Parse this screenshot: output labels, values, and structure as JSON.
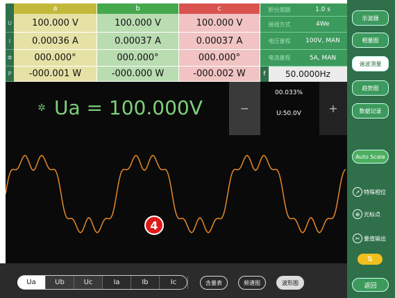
{
  "table": {
    "columns": [
      "a",
      "b",
      "c"
    ],
    "row_labels": [
      "U",
      "I",
      "Φ",
      "P"
    ],
    "rows": [
      [
        "100.000 V",
        "100.000 V",
        "100.000 V"
      ],
      [
        "0.00036 A",
        "0.00037 A",
        "0.00037 A"
      ],
      [
        "000.000°",
        "000.000°",
        "000.000°"
      ],
      [
        "-000.001 W",
        "-000.000 W",
        "-000.002 W"
      ]
    ]
  },
  "settings": [
    {
      "label": "积分周期",
      "value": "1.0 s"
    },
    {
      "label": "接线方式",
      "value": "4We"
    },
    {
      "label": "电压量程",
      "value": "100V, MAN"
    },
    {
      "label": "电流量程",
      "value": "5A, MAN"
    }
  ],
  "frequency": {
    "label": "f",
    "value": "50.0000Hz"
  },
  "readout": "Ua = 100.000V",
  "scale": {
    "minus": "−",
    "percent": "00.033%",
    "range": "U:50.0V",
    "plus": "+"
  },
  "annotation": "4",
  "tabs": [
    "Ua",
    "Ub",
    "Uc",
    "Ia",
    "Ib",
    "Ic"
  ],
  "active_tab": 0,
  "views": [
    "含量表",
    "频谱图",
    "波形图"
  ],
  "active_view": 2,
  "sidebar": [
    "示波器",
    "相量图",
    "谐波测量",
    "趋势图",
    "数据记录"
  ],
  "active_sidebar": 2,
  "auto_scale": "Auto Scale",
  "tools": [
    "特殊相位",
    "光标点",
    "量值输出"
  ],
  "back": "返回"
}
